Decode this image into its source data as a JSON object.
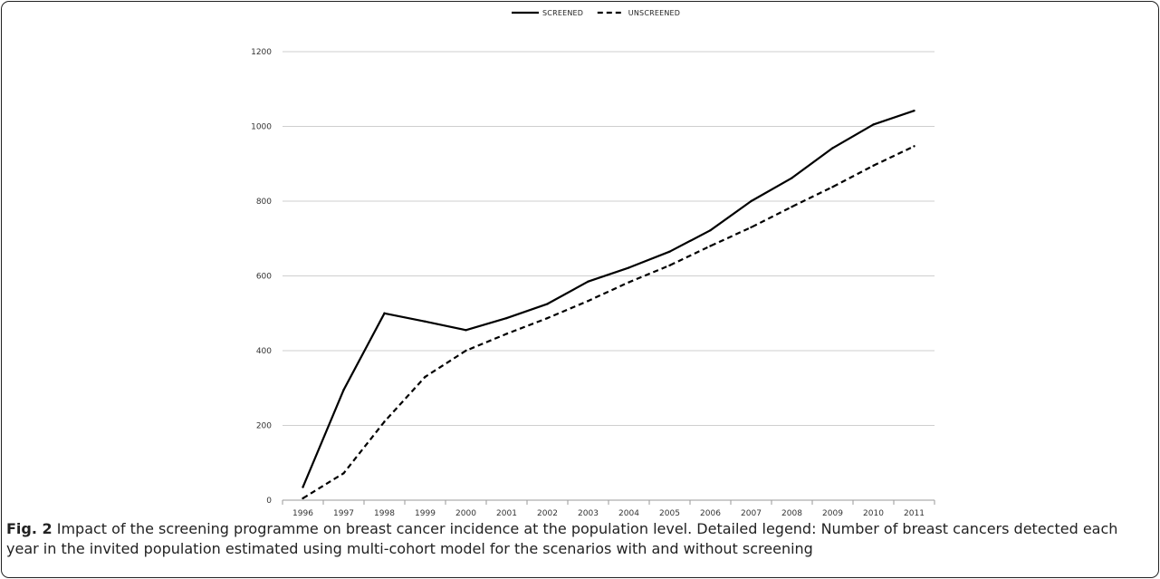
{
  "chart_data": {
    "type": "line",
    "title": "",
    "xlabel": "",
    "ylabel": "",
    "x": [
      "1996",
      "1997",
      "1998",
      "1999",
      "2000",
      "2001",
      "2002",
      "2003",
      "2004",
      "2005",
      "2006",
      "2007",
      "2008",
      "2009",
      "2010",
      "2011"
    ],
    "ylim": [
      0,
      1200
    ],
    "yticks": [
      "0",
      "200",
      "400",
      "600",
      "800",
      "1000",
      "1200"
    ],
    "grid": true,
    "legend_position": "top-center",
    "series": [
      {
        "name": "SCREENED",
        "style": "solid",
        "color": "#000000",
        "values": [
          35,
          295,
          500,
          478,
          455,
          487,
          525,
          585,
          622,
          665,
          722,
          800,
          862,
          942,
          1005,
          1042
        ]
      },
      {
        "name": "UNSCREENED",
        "style": "dashed",
        "color": "#000000",
        "values": [
          5,
          72,
          210,
          330,
          400,
          445,
          487,
          533,
          583,
          628,
          680,
          730,
          785,
          838,
          895,
          947
        ]
      }
    ]
  },
  "caption": {
    "label": "Fig. 2",
    "text": " Impact of the screening programme on breast cancer incidence at the population level. Detailed legend: Number of breast cancers detected each year in the invited population estimated using multi-cohort model for the scenarios with and without screening"
  }
}
